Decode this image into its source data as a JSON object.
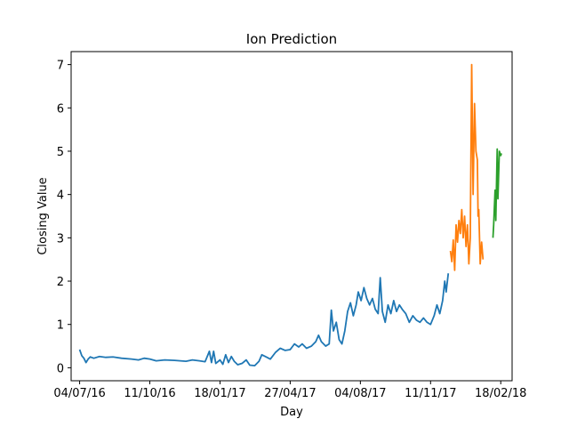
{
  "chart_data": {
    "type": "line",
    "title": "Ion Prediction",
    "xlabel": "Day",
    "ylabel": "Closing Value",
    "x_tick_labels": [
      "04/07/16",
      "11/10/16",
      "18/01/17",
      "27/04/17",
      "04/08/17",
      "11/11/17",
      "18/02/18"
    ],
    "x_tick_dates": [
      "2016-07-04",
      "2016-10-11",
      "2017-01-18",
      "2017-04-27",
      "2017-08-04",
      "2017-11-11",
      "2018-02-18"
    ],
    "xlim": [
      "2016-06-22",
      "2018-03-06"
    ],
    "ylim": [
      -0.3,
      7.3
    ],
    "y_ticks": [
      0,
      1,
      2,
      3,
      4,
      5,
      6,
      7
    ],
    "grid": false,
    "series": [
      {
        "color": "#1f77b4",
        "points": [
          [
            "2016-07-04",
            0.42
          ],
          [
            "2016-07-07",
            0.28
          ],
          [
            "2016-07-10",
            0.22
          ],
          [
            "2016-07-13",
            0.12
          ],
          [
            "2016-07-16",
            0.2
          ],
          [
            "2016-07-19",
            0.25
          ],
          [
            "2016-07-24",
            0.22
          ],
          [
            "2016-08-01",
            0.26
          ],
          [
            "2016-08-10",
            0.24
          ],
          [
            "2016-08-20",
            0.25
          ],
          [
            "2016-09-01",
            0.22
          ],
          [
            "2016-09-15",
            0.2
          ],
          [
            "2016-09-25",
            0.18
          ],
          [
            "2016-10-03",
            0.22
          ],
          [
            "2016-10-11",
            0.2
          ],
          [
            "2016-10-20",
            0.16
          ],
          [
            "2016-11-01",
            0.18
          ],
          [
            "2016-11-15",
            0.17
          ],
          [
            "2016-12-01",
            0.15
          ],
          [
            "2016-12-10",
            0.18
          ],
          [
            "2016-12-20",
            0.16
          ],
          [
            "2016-12-28",
            0.14
          ],
          [
            "2017-01-03",
            0.38
          ],
          [
            "2017-01-06",
            0.12
          ],
          [
            "2017-01-09",
            0.38
          ],
          [
            "2017-01-12",
            0.1
          ],
          [
            "2017-01-18",
            0.18
          ],
          [
            "2017-01-22",
            0.08
          ],
          [
            "2017-01-26",
            0.3
          ],
          [
            "2017-01-30",
            0.12
          ],
          [
            "2017-02-03",
            0.26
          ],
          [
            "2017-02-07",
            0.15
          ],
          [
            "2017-02-12",
            0.07
          ],
          [
            "2017-02-18",
            0.1
          ],
          [
            "2017-02-24",
            0.18
          ],
          [
            "2017-03-01",
            0.06
          ],
          [
            "2017-03-08",
            0.05
          ],
          [
            "2017-03-14",
            0.15
          ],
          [
            "2017-03-18",
            0.3
          ],
          [
            "2017-03-24",
            0.25
          ],
          [
            "2017-03-30",
            0.2
          ],
          [
            "2017-04-06",
            0.35
          ],
          [
            "2017-04-13",
            0.45
          ],
          [
            "2017-04-20",
            0.4
          ],
          [
            "2017-04-27",
            0.42
          ],
          [
            "2017-05-03",
            0.55
          ],
          [
            "2017-05-09",
            0.48
          ],
          [
            "2017-05-14",
            0.55
          ],
          [
            "2017-05-20",
            0.45
          ],
          [
            "2017-05-27",
            0.5
          ],
          [
            "2017-06-02",
            0.6
          ],
          [
            "2017-06-06",
            0.75
          ],
          [
            "2017-06-10",
            0.6
          ],
          [
            "2017-06-16",
            0.5
          ],
          [
            "2017-06-21",
            0.55
          ],
          [
            "2017-06-24",
            1.33
          ],
          [
            "2017-06-27",
            0.85
          ],
          [
            "2017-07-01",
            1.05
          ],
          [
            "2017-07-05",
            0.65
          ],
          [
            "2017-07-09",
            0.55
          ],
          [
            "2017-07-13",
            0.85
          ],
          [
            "2017-07-17",
            1.3
          ],
          [
            "2017-07-21",
            1.5
          ],
          [
            "2017-07-25",
            1.2
          ],
          [
            "2017-07-29",
            1.45
          ],
          [
            "2017-08-01",
            1.75
          ],
          [
            "2017-08-05",
            1.55
          ],
          [
            "2017-08-09",
            1.85
          ],
          [
            "2017-08-13",
            1.6
          ],
          [
            "2017-08-17",
            1.45
          ],
          [
            "2017-08-21",
            1.6
          ],
          [
            "2017-08-25",
            1.35
          ],
          [
            "2017-08-29",
            1.25
          ],
          [
            "2017-09-01",
            2.08
          ],
          [
            "2017-09-04",
            1.3
          ],
          [
            "2017-09-08",
            1.05
          ],
          [
            "2017-09-12",
            1.45
          ],
          [
            "2017-09-16",
            1.25
          ],
          [
            "2017-09-20",
            1.55
          ],
          [
            "2017-09-24",
            1.3
          ],
          [
            "2017-09-28",
            1.45
          ],
          [
            "2017-10-02",
            1.35
          ],
          [
            "2017-10-07",
            1.25
          ],
          [
            "2017-10-12",
            1.05
          ],
          [
            "2017-10-17",
            1.2
          ],
          [
            "2017-10-22",
            1.1
          ],
          [
            "2017-10-27",
            1.05
          ],
          [
            "2017-11-01",
            1.15
          ],
          [
            "2017-11-06",
            1.05
          ],
          [
            "2017-11-11",
            1.0
          ],
          [
            "2017-11-16",
            1.2
          ],
          [
            "2017-11-20",
            1.45
          ],
          [
            "2017-11-24",
            1.25
          ],
          [
            "2017-11-28",
            1.55
          ],
          [
            "2017-12-01",
            2.0
          ],
          [
            "2017-12-03",
            1.75
          ],
          [
            "2017-12-06",
            2.18
          ]
        ]
      },
      {
        "color": "#ff7f0e",
        "points": [
          [
            "2017-12-09",
            2.7
          ],
          [
            "2017-12-11",
            2.45
          ],
          [
            "2017-12-13",
            2.95
          ],
          [
            "2017-12-15",
            2.25
          ],
          [
            "2017-12-17",
            3.3
          ],
          [
            "2017-12-19",
            2.9
          ],
          [
            "2017-12-21",
            3.4
          ],
          [
            "2017-12-23",
            3.1
          ],
          [
            "2017-12-25",
            3.65
          ],
          [
            "2017-12-27",
            3.0
          ],
          [
            "2017-12-29",
            3.5
          ],
          [
            "2017-12-31",
            2.8
          ],
          [
            "2018-01-02",
            3.3
          ],
          [
            "2018-01-04",
            2.4
          ],
          [
            "2018-01-06",
            3.0
          ],
          [
            "2018-01-08",
            7.0
          ],
          [
            "2018-01-10",
            4.0
          ],
          [
            "2018-01-12",
            6.1
          ],
          [
            "2018-01-14",
            5.0
          ],
          [
            "2018-01-16",
            4.8
          ],
          [
            "2018-01-17",
            3.5
          ],
          [
            "2018-01-18",
            3.65
          ],
          [
            "2018-01-20",
            2.4
          ],
          [
            "2018-01-22",
            2.9
          ],
          [
            "2018-01-24",
            2.5
          ]
        ]
      },
      {
        "color": "#2ca02c",
        "points": [
          [
            "2018-02-07",
            3.0
          ],
          [
            "2018-02-08",
            3.3
          ],
          [
            "2018-02-10",
            4.1
          ],
          [
            "2018-02-11",
            3.4
          ],
          [
            "2018-02-13",
            5.05
          ],
          [
            "2018-02-14",
            3.9
          ],
          [
            "2018-02-16",
            5.0
          ],
          [
            "2018-02-18",
            4.9
          ],
          [
            "2018-02-19",
            4.95
          ]
        ]
      }
    ]
  }
}
